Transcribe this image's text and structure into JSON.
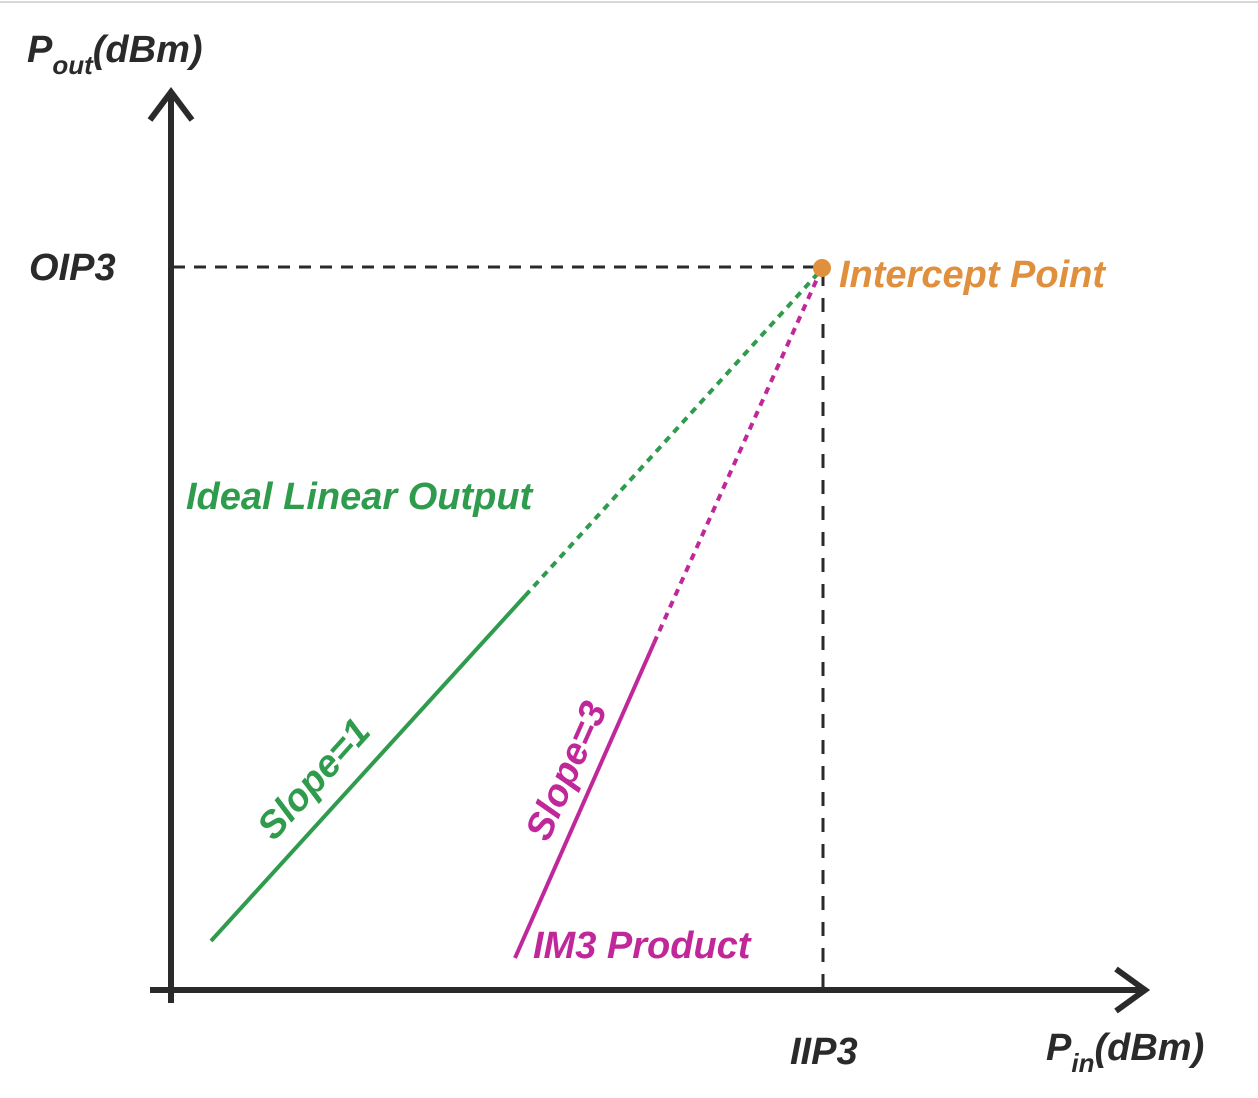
{
  "colors": {
    "axis": "#2a2a2a",
    "ideal_linear": "#2f9b4d",
    "im3": "#c0289a",
    "intercept": "#e08f3c"
  },
  "labels": {
    "y_axis_main": "P",
    "y_axis_sub": "out",
    "y_axis_unit": "(dBm)",
    "x_axis_main": "P",
    "x_axis_sub": "in",
    "x_axis_unit": "(dBm)",
    "oip3": "OIP3",
    "iip3": "IIP3",
    "intercept_point": "Intercept Point",
    "ideal_linear_output": "Ideal Linear Output",
    "slope_1": "Slope=1",
    "slope_3": "Slope=3",
    "im3_product": "IM3 Product"
  }
}
